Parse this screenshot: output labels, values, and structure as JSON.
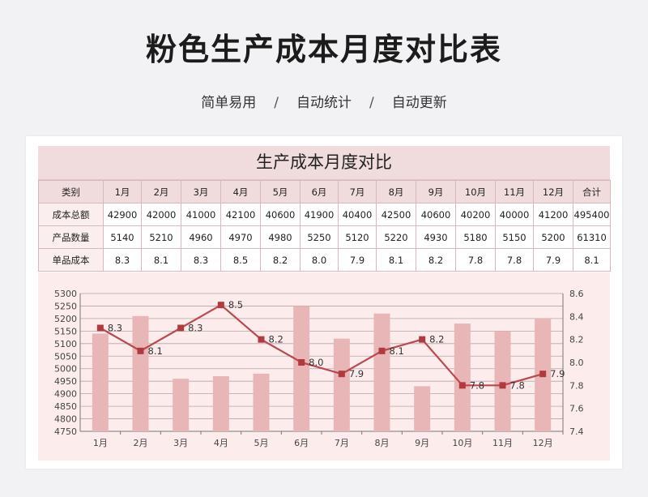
{
  "header": {
    "title": "粉色生产成本月度对比表",
    "tags": [
      "简单易用",
      "自动统计",
      "自动更新"
    ],
    "separator": "/"
  },
  "sheet": {
    "title": "生产成本月度对比",
    "columns": [
      "类别",
      "1月",
      "2月",
      "3月",
      "4月",
      "5月",
      "6月",
      "7月",
      "8月",
      "9月",
      "10月",
      "11月",
      "12月",
      "合计"
    ],
    "rows": [
      {
        "label": "成本总额",
        "values": [
          "42900",
          "42000",
          "41000",
          "42100",
          "40600",
          "41900",
          "40400",
          "42500",
          "40600",
          "40200",
          "40000",
          "41200",
          "495400"
        ]
      },
      {
        "label": "产品数量",
        "values": [
          "5140",
          "5210",
          "4960",
          "4970",
          "4980",
          "5250",
          "5120",
          "5220",
          "4930",
          "5180",
          "5150",
          "5200",
          "61310"
        ]
      },
      {
        "label": "单品成本",
        "values": [
          "8.3",
          "8.1",
          "8.3",
          "8.5",
          "8.2",
          "8.0",
          "7.9",
          "8.1",
          "8.2",
          "7.8",
          "7.8",
          "7.9",
          "8.1"
        ]
      }
    ]
  },
  "colors": {
    "bar": "#e8b6b6",
    "line": "#b84a50",
    "marker": "#b13a40",
    "grid": "#b9a3a6",
    "axis_text": "#444444"
  },
  "chart_data": {
    "type": "bar",
    "categories": [
      "1月",
      "2月",
      "3月",
      "4月",
      "5月",
      "6月",
      "7月",
      "8月",
      "9月",
      "10月",
      "11月",
      "12月"
    ],
    "series": [
      {
        "name": "产品数量",
        "type": "bar",
        "axis": "left",
        "values": [
          5140,
          5210,
          4960,
          4970,
          4980,
          5250,
          5120,
          5220,
          4930,
          5180,
          5150,
          5200
        ]
      },
      {
        "name": "单品成本",
        "type": "line",
        "axis": "right",
        "values": [
          8.3,
          8.1,
          8.3,
          8.5,
          8.2,
          8.0,
          7.9,
          8.1,
          8.2,
          7.8,
          7.8,
          7.9
        ],
        "labels": [
          "8.3",
          "8.1",
          "8.3",
          "8.5",
          "8.2",
          "8.0",
          "7.9",
          "8.1",
          "8.2",
          "7.8",
          "7.8",
          "7.9"
        ]
      }
    ],
    "ylim": [
      4750,
      5300
    ],
    "yticks": [
      4750,
      4800,
      4850,
      4900,
      4950,
      5000,
      5050,
      5100,
      5150,
      5200,
      5250,
      5300
    ],
    "y2lim": [
      7.4,
      8.6
    ],
    "y2ticks": [
      "7.4",
      "7.6",
      "7.8",
      "8.0",
      "8.2",
      "8.4",
      "8.6"
    ],
    "grid": true,
    "legend": "none"
  }
}
